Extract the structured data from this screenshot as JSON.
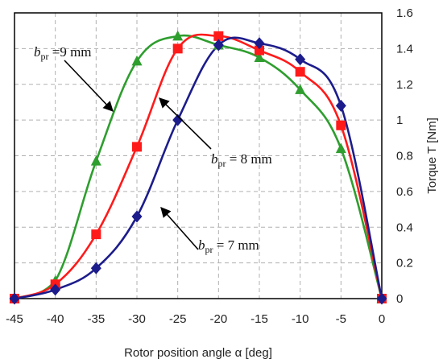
{
  "chart_data": {
    "type": "line",
    "title": "",
    "xlabel": "Rotor position angle α [deg]",
    "ylabel": "Torque T [Nm]",
    "xlim": [
      -45,
      0
    ],
    "ylim": [
      0,
      1.6
    ],
    "x_ticks": [
      -45,
      -40,
      -35,
      -30,
      -25,
      -20,
      -15,
      -10,
      -5,
      0
    ],
    "y_ticks": [
      0,
      0.2,
      0.4,
      0.6,
      0.8,
      1,
      1.2,
      1.4,
      1.6
    ],
    "x_tick_labels": [
      "-45",
      "-40",
      "-35",
      "-30",
      "-25",
      "-20",
      "-15",
      "-10",
      "-5",
      "0"
    ],
    "y_tick_labels": [
      "0",
      "0.2",
      "0.4",
      "0.6",
      "0.8",
      "1",
      "1.2",
      "1.4",
      "1.6"
    ],
    "y_axis_position": "right",
    "grid": true,
    "grid_style": "dashed",
    "series": [
      {
        "name": "bpr = 9 mm",
        "color": "#2e9e2e",
        "marker": "triangle",
        "x": [
          -45,
          -40,
          -35,
          -30,
          -25,
          -20,
          -15,
          -10,
          -5,
          0
        ],
        "y": [
          0.0,
          0.1,
          0.77,
          1.33,
          1.47,
          1.42,
          1.35,
          1.17,
          0.84,
          0.0
        ]
      },
      {
        "name": "bpr = 8 mm",
        "color": "#ff1a1a",
        "marker": "square",
        "x": [
          -45,
          -40,
          -35,
          -30,
          -25,
          -20,
          -15,
          -10,
          -5,
          0
        ],
        "y": [
          0.0,
          0.08,
          0.36,
          0.85,
          1.4,
          1.47,
          1.39,
          1.27,
          0.97,
          0.0
        ]
      },
      {
        "name": "bpr = 7 mm",
        "color": "#1c1c8c",
        "marker": "diamond",
        "x": [
          -45,
          -40,
          -35,
          -30,
          -25,
          -20,
          -15,
          -10,
          -5,
          0
        ],
        "y": [
          0.0,
          0.05,
          0.17,
          0.46,
          1.0,
          1.42,
          1.43,
          1.34,
          1.08,
          0.0
        ]
      }
    ],
    "annotations": [
      {
        "main": "b",
        "sub": "pr",
        "text": " =9 mm",
        "series": "bpr = 9 mm"
      },
      {
        "main": "b",
        "sub": "pr",
        "text": " = 8 mm",
        "series": "bpr = 8 mm"
      },
      {
        "main": "b",
        "sub": "pr",
        "text": " = 7 mm",
        "series": "bpr = 7 mm"
      }
    ]
  }
}
